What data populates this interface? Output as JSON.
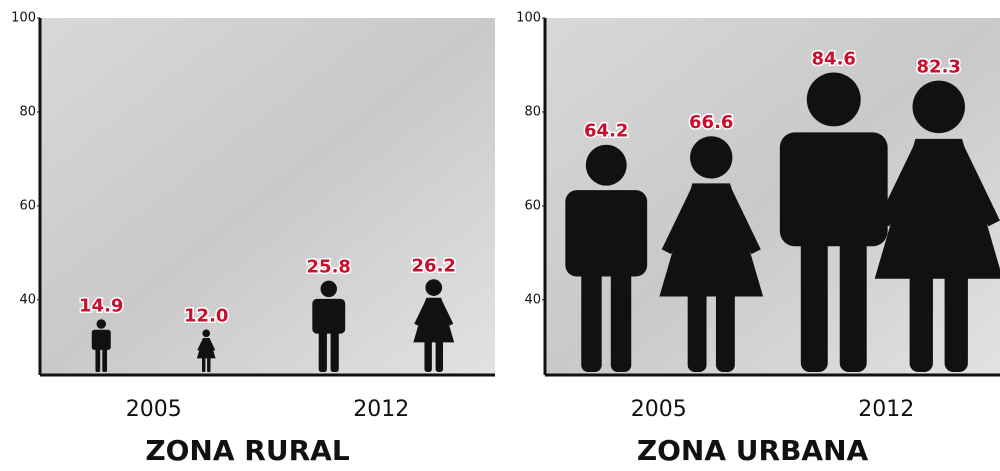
{
  "chart_data": [
    {
      "type": "pictograph",
      "title": "ZONA RURAL",
      "categories": [
        "2005",
        "2012"
      ],
      "series": [
        {
          "shape": "male",
          "color": "#111111",
          "values": [
            14.9,
            25.8
          ]
        },
        {
          "shape": "female",
          "color": "#111111",
          "values": [
            12.0,
            26.2
          ],
          "value_labels": [
            "12.0",
            "26.2"
          ]
        }
      ],
      "value_label_color": "#c8102e",
      "ylim": [
        24,
        100
      ],
      "yticks": [
        40,
        60,
        80,
        100
      ]
    },
    {
      "type": "pictograph",
      "title": "ZONA URBANA",
      "categories": [
        "2005",
        "2012"
      ],
      "series": [
        {
          "shape": "male",
          "color": "#111111",
          "values": [
            64.2,
            84.6
          ]
        },
        {
          "shape": "female",
          "color": "#111111",
          "values": [
            66.6,
            82.3
          ]
        }
      ],
      "value_label_color": "#c8102e",
      "ylim": [
        24,
        100
      ],
      "yticks": [
        40,
        60,
        80,
        100
      ]
    }
  ]
}
